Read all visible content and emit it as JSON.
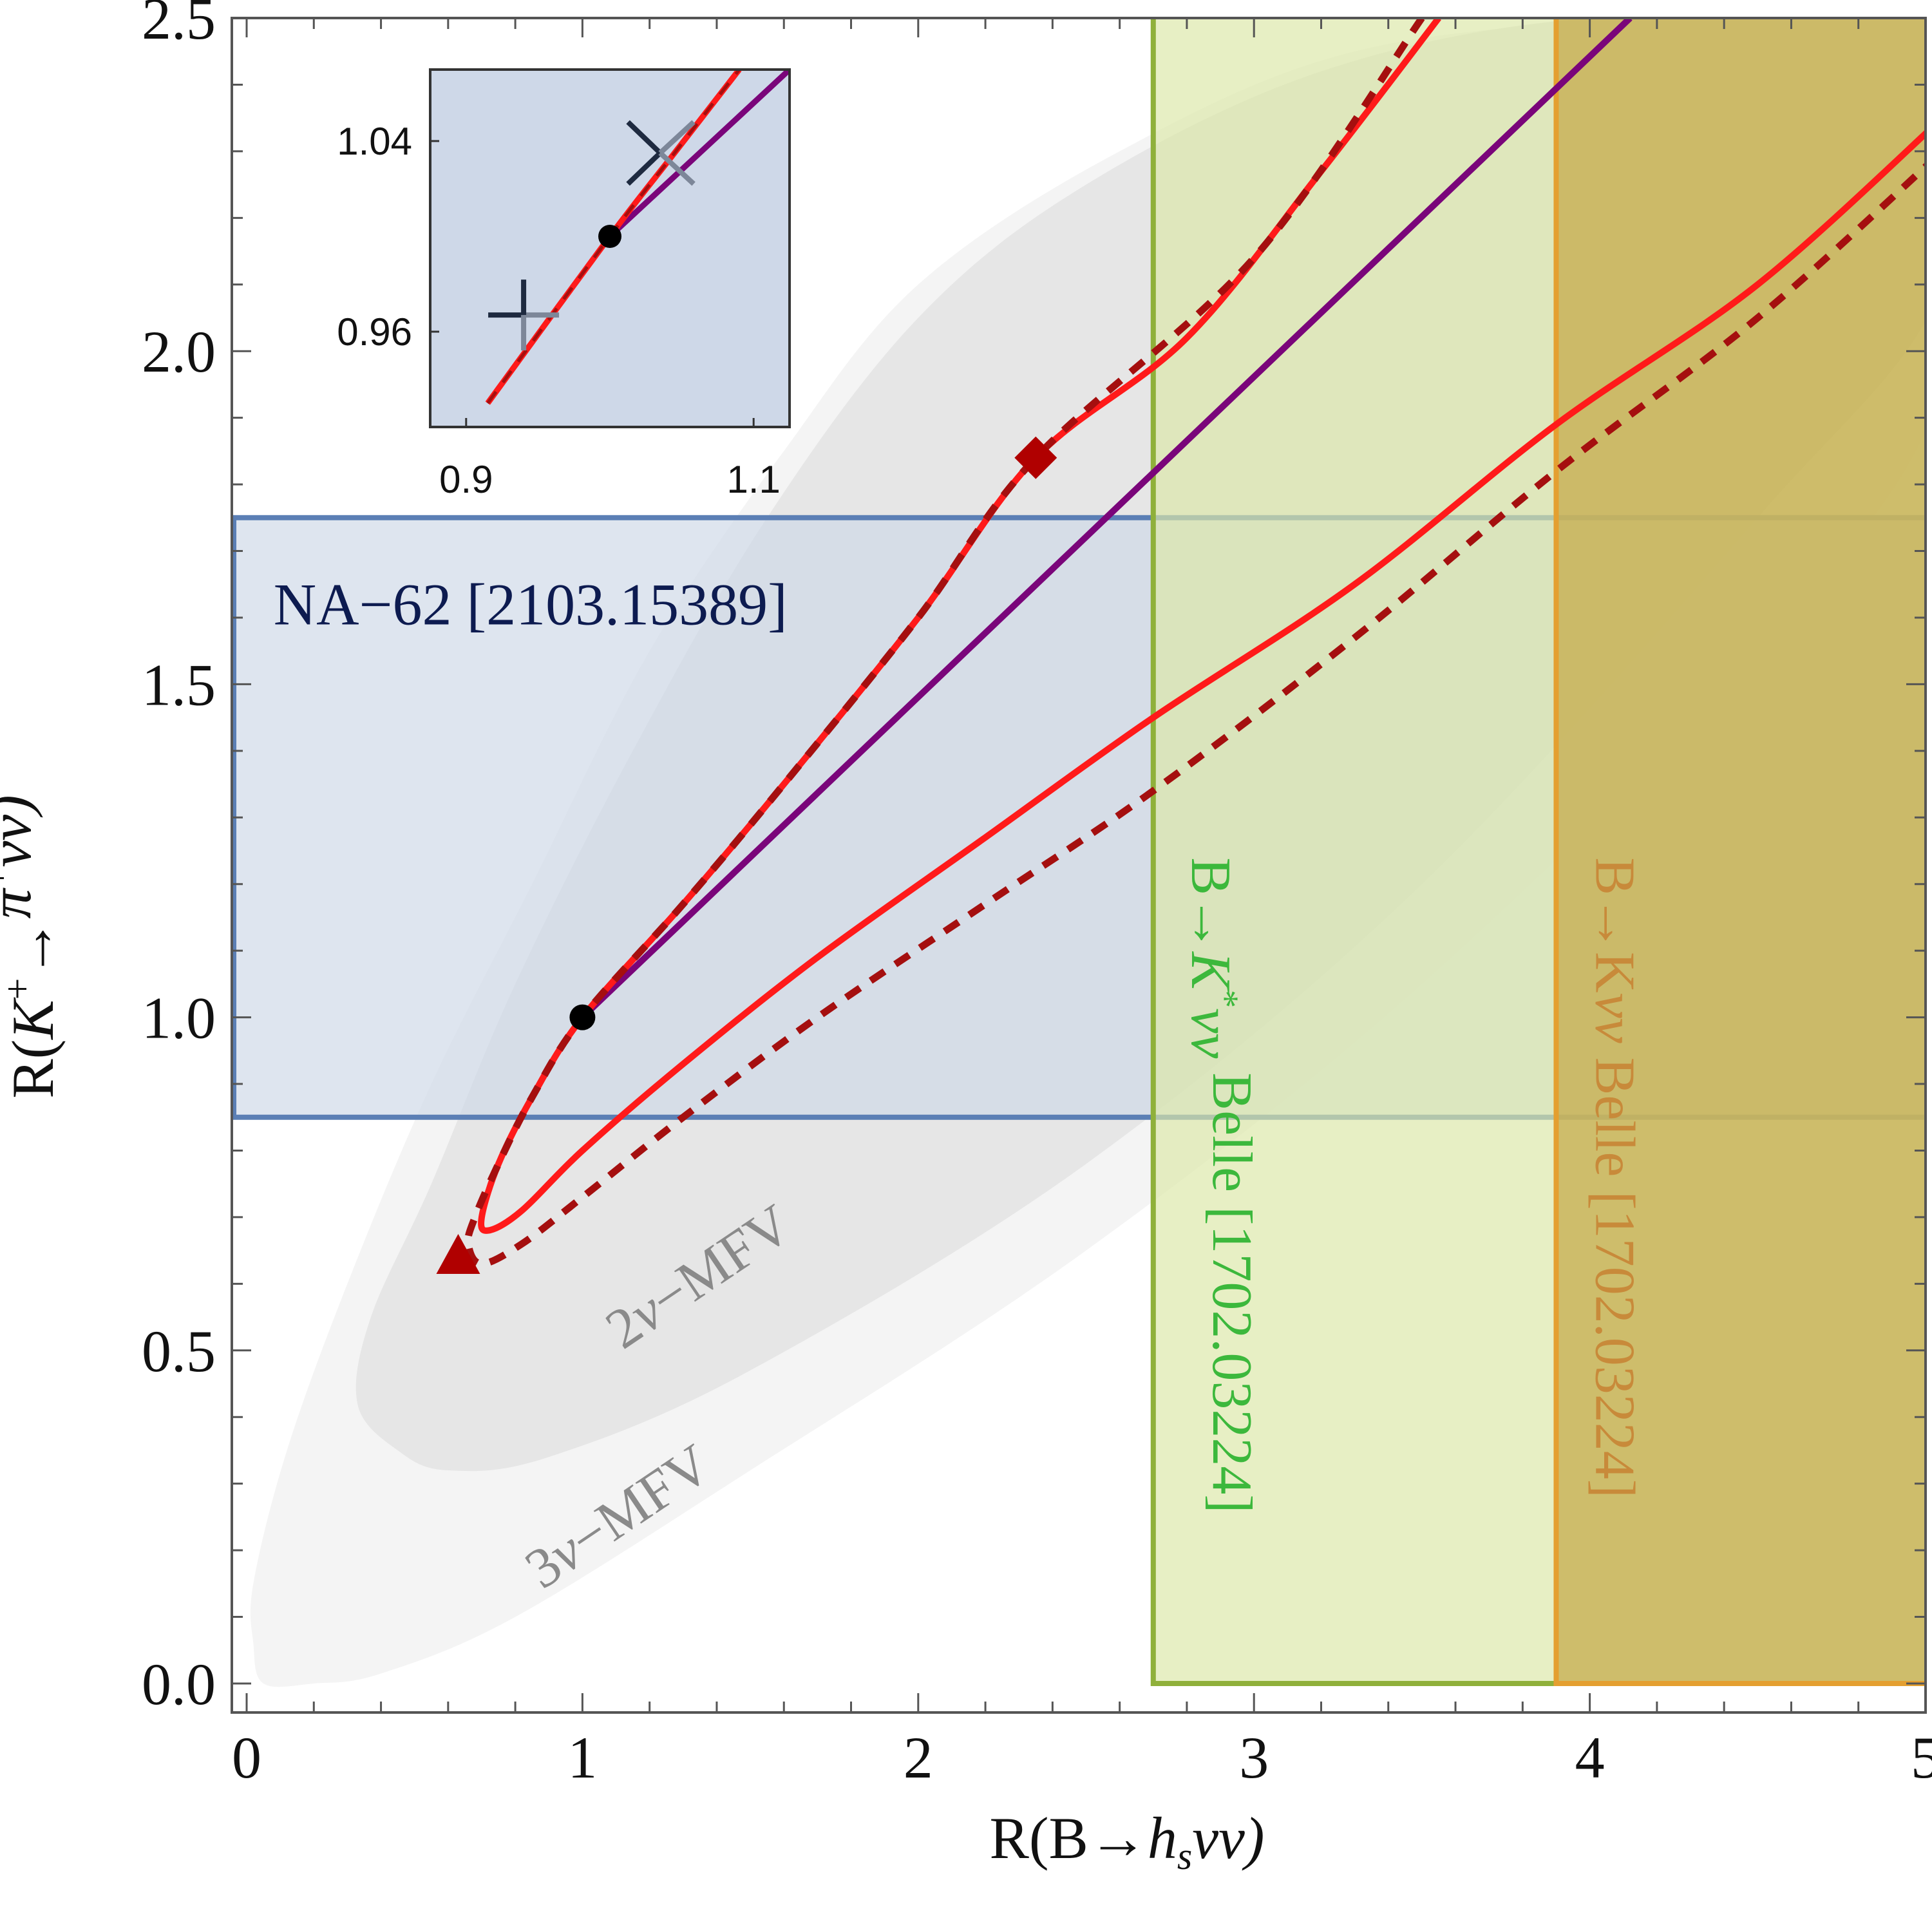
{
  "chart_data": {
    "type": "line",
    "title": "",
    "xlabel_parts": [
      {
        "text": "R(B→",
        "style": "normal"
      },
      {
        "text": "h",
        "style": "italic"
      },
      {
        "text": "s",
        "style": "italic-sub"
      },
      {
        "text": "νν)",
        "style": "italic"
      }
    ],
    "ylabel_parts": [
      {
        "text": "R(",
        "style": "normal"
      },
      {
        "text": "K",
        "style": "italic"
      },
      {
        "text": "+",
        "style": "sup"
      },
      {
        "text": "→",
        "style": "normal"
      },
      {
        "text": "π",
        "style": "italic"
      },
      {
        "text": "+",
        "style": "sup"
      },
      {
        "text": "νν)",
        "style": "italic"
      }
    ],
    "xlim": [
      0,
      5
    ],
    "ylim": [
      0,
      2.5
    ],
    "x_ticks": [
      {
        "value": 0,
        "label": "0"
      },
      {
        "value": 1,
        "label": "1"
      },
      {
        "value": 2,
        "label": "2"
      },
      {
        "value": 3,
        "label": "3"
      },
      {
        "value": 4,
        "label": "4"
      },
      {
        "value": 5,
        "label": "5"
      }
    ],
    "y_ticks": [
      {
        "value": 0.0,
        "label": "0.0"
      },
      {
        "value": 0.5,
        "label": "0.5"
      },
      {
        "value": 1.0,
        "label": "1.0"
      },
      {
        "value": 1.5,
        "label": "1.5"
      },
      {
        "value": 2.0,
        "label": "2.0"
      },
      {
        "value": 2.5,
        "label": "2.5"
      }
    ],
    "bands": [
      {
        "name": "NA-62",
        "label": "NA−62 [2103.15389]",
        "orientation": "horizontal",
        "range": [
          0.85,
          1.75
        ],
        "fill": "#ced8e8",
        "stroke": "#5b7fb5",
        "label_color": "#0d1b50"
      },
      {
        "name": "Kstar-Belle",
        "label_parts": [
          {
            "text": "B→",
            "style": "normal"
          },
          {
            "text": "K",
            "style": "italic"
          },
          {
            "text": "*",
            "style": "sup"
          },
          {
            "text": "νν",
            "style": "italic"
          },
          {
            "text": " Belle [1702.03224]",
            "style": "normal"
          }
        ],
        "orientation": "vertical",
        "range": [
          2.7,
          5.05
        ],
        "fill": "#dce8a8",
        "stroke": "#8fb03a",
        "label_color": "#3cb83c"
      },
      {
        "name": "K-Belle",
        "label_parts": [
          {
            "text": "B→K",
            "style": "normal"
          },
          {
            "text": "νν",
            "style": "italic"
          },
          {
            "text": " Belle [1702.03224]",
            "style": "normal"
          }
        ],
        "orientation": "vertical",
        "range": [
          3.9,
          5.05
        ],
        "fill": "#c5a948",
        "stroke": "#e49f30",
        "label_color": "#c88a3a"
      }
    ],
    "regions": [
      {
        "name": "3nu-MFV",
        "label_parts": [
          {
            "text": "3",
            "style": "normal"
          },
          {
            "text": "ν",
            "style": "italic"
          },
          {
            "text": "−MFV",
            "style": "normal"
          }
        ],
        "label_color": "#8a8a8a",
        "fill": "#f4f4f4",
        "boundary": [
          [
            0.05,
            0.0
          ],
          [
            0.02,
            0.06
          ],
          [
            0.02,
            0.15
          ],
          [
            0.12,
            0.35
          ],
          [
            0.3,
            0.6
          ],
          [
            0.55,
            0.9
          ],
          [
            0.85,
            1.2
          ],
          [
            1.2,
            1.55
          ],
          [
            1.6,
            1.85
          ],
          [
            2.0,
            2.1
          ],
          [
            2.6,
            2.3
          ],
          [
            3.3,
            2.45
          ],
          [
            4.2,
            2.5
          ],
          [
            5.05,
            2.5
          ],
          [
            5.05,
            1.95
          ],
          [
            4.5,
            1.55
          ],
          [
            3.5,
            1.05
          ],
          [
            2.5,
            0.65
          ],
          [
            1.5,
            0.32
          ],
          [
            0.8,
            0.1
          ],
          [
            0.4,
            0.015
          ],
          [
            0.2,
            0.0
          ]
        ]
      },
      {
        "name": "2nu-MFV",
        "label_parts": [
          {
            "text": "2",
            "style": "normal"
          },
          {
            "text": "ν",
            "style": "italic"
          },
          {
            "text": "−MFV",
            "style": "normal"
          }
        ],
        "label_color": "#8a8a8a",
        "fill": "#e6e6e6",
        "boundary": [
          [
            0.45,
            0.35
          ],
          [
            0.33,
            0.42
          ],
          [
            0.37,
            0.55
          ],
          [
            0.55,
            0.75
          ],
          [
            0.8,
            1.05
          ],
          [
            1.15,
            1.4
          ],
          [
            1.55,
            1.75
          ],
          [
            2.0,
            2.05
          ],
          [
            2.5,
            2.25
          ],
          [
            3.2,
            2.42
          ],
          [
            4.0,
            2.5
          ],
          [
            5.05,
            2.5
          ],
          [
            5.05,
            2.1
          ],
          [
            4.5,
            1.75
          ],
          [
            3.5,
            1.2
          ],
          [
            2.5,
            0.78
          ],
          [
            1.5,
            0.47
          ],
          [
            0.9,
            0.34
          ],
          [
            0.6,
            0.32
          ]
        ]
      }
    ],
    "series": [
      {
        "name": "red-solid",
        "color": "#ff1a1a",
        "style": "solid",
        "x": [
          3.55,
          3.2,
          2.8,
          2.35,
          2.0,
          1.6,
          1.3,
          1.0,
          0.85,
          0.75,
          0.7,
          0.72,
          0.82,
          1.0,
          1.3,
          1.7,
          2.2,
          2.7,
          3.3,
          3.9,
          4.5,
          5.05
        ],
        "y": [
          2.5,
          2.27,
          2.02,
          1.84,
          1.6,
          1.35,
          1.17,
          1.0,
          0.88,
          0.78,
          0.7,
          0.68,
          0.71,
          0.8,
          0.93,
          1.09,
          1.27,
          1.45,
          1.65,
          1.89,
          2.1,
          2.35
        ]
      },
      {
        "name": "darkred-dashed",
        "color": "#a50f0f",
        "style": "dashed",
        "x": [
          3.5,
          3.0,
          2.35,
          2.0,
          1.6,
          1.3,
          1.0,
          0.85,
          0.75,
          0.68,
          0.66,
          0.7,
          0.82,
          1.0,
          1.3,
          1.7,
          2.2,
          2.7,
          3.3,
          3.9,
          4.5,
          5.05
        ],
        "y": [
          2.5,
          2.14,
          1.84,
          1.6,
          1.35,
          1.17,
          1.0,
          0.88,
          0.78,
          0.7,
          0.66,
          0.63,
          0.66,
          0.73,
          0.85,
          1.0,
          1.17,
          1.34,
          1.57,
          1.82,
          2.05,
          2.3
        ]
      },
      {
        "name": "purple",
        "color": "#7a057a",
        "style": "solid",
        "x": [
          1.0,
          4.12
        ],
        "y": [
          1.0,
          2.5
        ]
      }
    ],
    "markers": [
      {
        "name": "sm-point",
        "shape": "circle",
        "color": "#000000",
        "x": 1.0,
        "y": 1.0
      },
      {
        "name": "diamond-point",
        "shape": "diamond",
        "color": "#b00000",
        "x": 2.35,
        "y": 1.84
      },
      {
        "name": "triangle-point",
        "shape": "triangle",
        "color": "#b00000",
        "x": 0.63,
        "y": 0.64
      }
    ],
    "inset": {
      "background": "#ced8e8",
      "xlim": [
        0.875,
        1.125
      ],
      "ylim": [
        0.92,
        1.07
      ],
      "x_ticks": [
        {
          "value": 0.9,
          "label": "0.9"
        },
        {
          "value": 1.1,
          "label": "1.1"
        }
      ],
      "y_ticks": [
        {
          "value": 0.96,
          "label": "0.96"
        },
        {
          "value": 1.04,
          "label": "1.04"
        }
      ],
      "series": [
        {
          "name": "inset-purple",
          "color": "#7a057a",
          "x": [
            1.0,
            1.125
          ],
          "y": [
            1.0,
            1.07
          ]
        },
        {
          "name": "inset-red",
          "color": "#ff1a1a",
          "x": [
            0.915,
            1.0,
            1.045,
            1.09
          ],
          "y": [
            0.93,
            1.0,
            1.035,
            1.07
          ]
        },
        {
          "name": "inset-dashed",
          "color": "#a50f0f",
          "x": [
            0.915,
            1.0,
            1.045,
            1.09
          ],
          "y": [
            0.93,
            1.0,
            1.035,
            1.07
          ]
        }
      ],
      "markers": [
        {
          "name": "inset-sm-point",
          "shape": "circle",
          "color": "#000000",
          "x": 1.0,
          "y": 1.0
        },
        {
          "name": "inset-plus",
          "shape": "plus",
          "color": "#1e2a40",
          "x": 0.94,
          "y": 0.967
        },
        {
          "name": "inset-cross",
          "shape": "x",
          "color": "#1e2a40",
          "x": 1.035,
          "y": 1.035
        }
      ]
    }
  }
}
